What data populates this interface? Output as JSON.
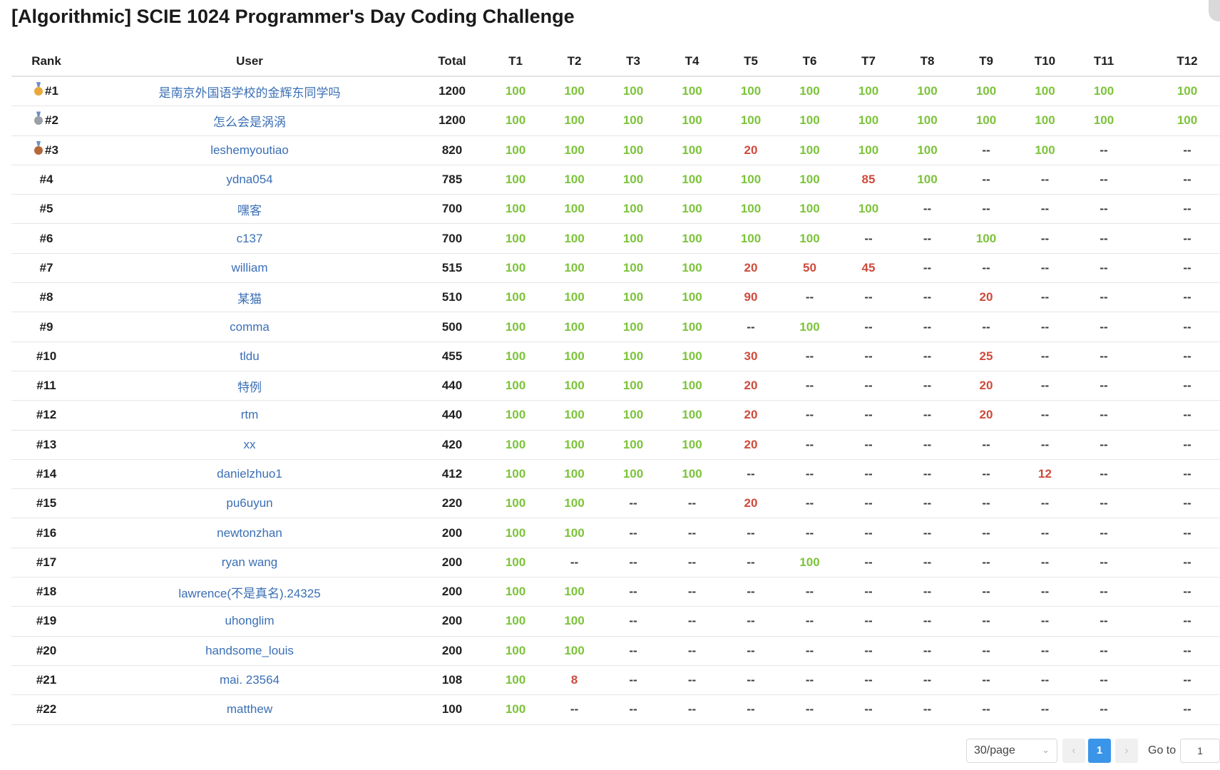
{
  "title": "[Algorithmic] SCIE 1024 Programmer's Day Coding Challenge",
  "columns": [
    "Rank",
    "User",
    "Total",
    "T1",
    "T2",
    "T3",
    "T4",
    "T5",
    "T6",
    "T7",
    "T8",
    "T9",
    "T10",
    "T11",
    "T12"
  ],
  "colors": {
    "full_score": "#7cc33a",
    "partial_score": "#cf4a3b",
    "user_link": "#3a6fb5",
    "accent": "#3a95e8"
  },
  "medals": [
    {
      "rank": 1,
      "icon": "gold-medal-icon",
      "color": "#e8a93a"
    },
    {
      "rank": 2,
      "icon": "silver-medal-icon",
      "color": "#9aa0a6"
    },
    {
      "rank": 3,
      "icon": "bronze-medal-icon",
      "color": "#b5683a"
    }
  ],
  "rows": [
    {
      "rank": "#1",
      "user": "是南京外国语学校的金辉东同学吗",
      "total": "1200",
      "scores": [
        "100",
        "100",
        "100",
        "100",
        "100",
        "100",
        "100",
        "100",
        "100",
        "100",
        "100",
        "100"
      ]
    },
    {
      "rank": "#2",
      "user": "怎么会是涡涡",
      "total": "1200",
      "scores": [
        "100",
        "100",
        "100",
        "100",
        "100",
        "100",
        "100",
        "100",
        "100",
        "100",
        "100",
        "100"
      ]
    },
    {
      "rank": "#3",
      "user": "leshemyoutiao",
      "total": "820",
      "scores": [
        "100",
        "100",
        "100",
        "100",
        "20",
        "100",
        "100",
        "100",
        "--",
        "100",
        "--",
        "--"
      ]
    },
    {
      "rank": "#4",
      "user": "ydna054",
      "total": "785",
      "scores": [
        "100",
        "100",
        "100",
        "100",
        "100",
        "100",
        "85",
        "100",
        "--",
        "--",
        "--",
        "--"
      ]
    },
    {
      "rank": "#5",
      "user": "嘿客",
      "total": "700",
      "scores": [
        "100",
        "100",
        "100",
        "100",
        "100",
        "100",
        "100",
        "--",
        "--",
        "--",
        "--",
        "--"
      ]
    },
    {
      "rank": "#6",
      "user": "c137",
      "total": "700",
      "scores": [
        "100",
        "100",
        "100",
        "100",
        "100",
        "100",
        "--",
        "--",
        "100",
        "--",
        "--",
        "--"
      ]
    },
    {
      "rank": "#7",
      "user": "william",
      "total": "515",
      "scores": [
        "100",
        "100",
        "100",
        "100",
        "20",
        "50",
        "45",
        "--",
        "--",
        "--",
        "--",
        "--"
      ]
    },
    {
      "rank": "#8",
      "user": "某猫",
      "total": "510",
      "scores": [
        "100",
        "100",
        "100",
        "100",
        "90",
        "--",
        "--",
        "--",
        "20",
        "--",
        "--",
        "--"
      ]
    },
    {
      "rank": "#9",
      "user": "comma",
      "total": "500",
      "scores": [
        "100",
        "100",
        "100",
        "100",
        "--",
        "100",
        "--",
        "--",
        "--",
        "--",
        "--",
        "--"
      ]
    },
    {
      "rank": "#10",
      "user": "tldu",
      "total": "455",
      "scores": [
        "100",
        "100",
        "100",
        "100",
        "30",
        "--",
        "--",
        "--",
        "25",
        "--",
        "--",
        "--"
      ]
    },
    {
      "rank": "#11",
      "user": "特例",
      "total": "440",
      "scores": [
        "100",
        "100",
        "100",
        "100",
        "20",
        "--",
        "--",
        "--",
        "20",
        "--",
        "--",
        "--"
      ]
    },
    {
      "rank": "#12",
      "user": "rtm",
      "total": "440",
      "scores": [
        "100",
        "100",
        "100",
        "100",
        "20",
        "--",
        "--",
        "--",
        "20",
        "--",
        "--",
        "--"
      ]
    },
    {
      "rank": "#13",
      "user": "xx",
      "total": "420",
      "scores": [
        "100",
        "100",
        "100",
        "100",
        "20",
        "--",
        "--",
        "--",
        "--",
        "--",
        "--",
        "--"
      ]
    },
    {
      "rank": "#14",
      "user": "danielzhuo1",
      "total": "412",
      "scores": [
        "100",
        "100",
        "100",
        "100",
        "--",
        "--",
        "--",
        "--",
        "--",
        "12",
        "--",
        "--"
      ]
    },
    {
      "rank": "#15",
      "user": "pu6uyun",
      "total": "220",
      "scores": [
        "100",
        "100",
        "--",
        "--",
        "20",
        "--",
        "--",
        "--",
        "--",
        "--",
        "--",
        "--"
      ]
    },
    {
      "rank": "#16",
      "user": "newtonzhan",
      "total": "200",
      "scores": [
        "100",
        "100",
        "--",
        "--",
        "--",
        "--",
        "--",
        "--",
        "--",
        "--",
        "--",
        "--"
      ]
    },
    {
      "rank": "#17",
      "user": "ryan wang",
      "total": "200",
      "scores": [
        "100",
        "--",
        "--",
        "--",
        "--",
        "100",
        "--",
        "--",
        "--",
        "--",
        "--",
        "--"
      ]
    },
    {
      "rank": "#18",
      "user": "lawrence(不是真名).24325",
      "total": "200",
      "scores": [
        "100",
        "100",
        "--",
        "--",
        "--",
        "--",
        "--",
        "--",
        "--",
        "--",
        "--",
        "--"
      ]
    },
    {
      "rank": "#19",
      "user": "uhonglim",
      "total": "200",
      "scores": [
        "100",
        "100",
        "--",
        "--",
        "--",
        "--",
        "--",
        "--",
        "--",
        "--",
        "--",
        "--"
      ]
    },
    {
      "rank": "#20",
      "user": "handsome_louis",
      "total": "200",
      "scores": [
        "100",
        "100",
        "--",
        "--",
        "--",
        "--",
        "--",
        "--",
        "--",
        "--",
        "--",
        "--"
      ]
    },
    {
      "rank": "#21",
      "user": "mai. 23564",
      "total": "108",
      "scores": [
        "100",
        "8",
        "--",
        "--",
        "--",
        "--",
        "--",
        "--",
        "--",
        "--",
        "--",
        "--"
      ]
    },
    {
      "rank": "#22",
      "user": "matthew",
      "total": "100",
      "scores": [
        "100",
        "--",
        "--",
        "--",
        "--",
        "--",
        "--",
        "--",
        "--",
        "--",
        "--",
        "--"
      ]
    }
  ],
  "pagination": {
    "page_size": "30/page",
    "page_size_icon": "chevron-down-icon",
    "prev_icon": "chevron-left-icon",
    "next_icon": "chevron-right-icon",
    "prev_glyph": "‹",
    "next_glyph": "›",
    "current_page": "1",
    "goto_label": "Go to",
    "goto_value": "1"
  }
}
